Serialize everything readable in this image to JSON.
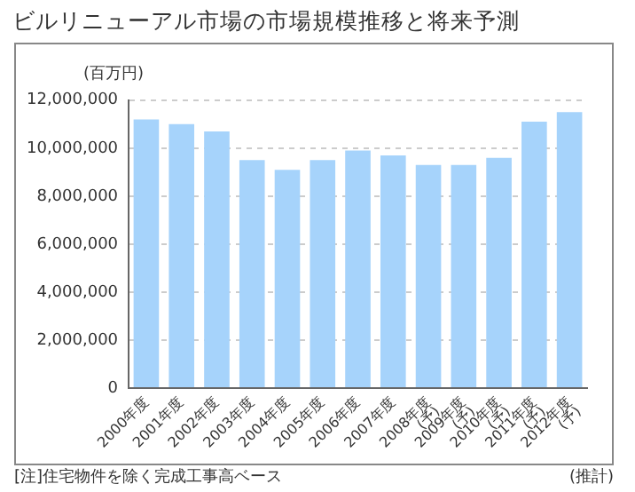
{
  "chart_data": {
    "type": "bar",
    "title": "ビルリニューアル市場の市場規模推移と将来予測",
    "ylabel": "(百万円)",
    "categories": [
      "2000年度",
      "2001年度",
      "2002年度",
      "2003年度",
      "2004年度",
      "2005年度",
      "2006年度",
      "2007年度",
      "2008年度\n(予)",
      "2009年度\n(予)",
      "2010年度\n(予)",
      "2011年度\n(予)",
      "2012年度\n(予)"
    ],
    "values": [
      11200000,
      11000000,
      10700000,
      9500000,
      9100000,
      9500000,
      9900000,
      9700000,
      9300000,
      9300000,
      9600000,
      11100000,
      11500000
    ],
    "color": "#a6d3fb",
    "ylim": [
      0,
      12000000
    ],
    "yticks": [
      0,
      {
        "value": 2000000,
        "label": "2,000,000"
      },
      {
        "value": 4000000,
        "label": "4,000,000"
      },
      {
        "value": 6000000,
        "label": "6,000,000"
      },
      {
        "value": 8000000,
        "label": "8,000,000"
      },
      {
        "value": 10000000,
        "label": "10,000,000"
      },
      {
        "value": 12000000,
        "label": "12,000,000"
      }
    ],
    "grid": "y",
    "annotations": [
      "[注]住宅物件を除く完成工事高ベース",
      "(推計)"
    ]
  }
}
